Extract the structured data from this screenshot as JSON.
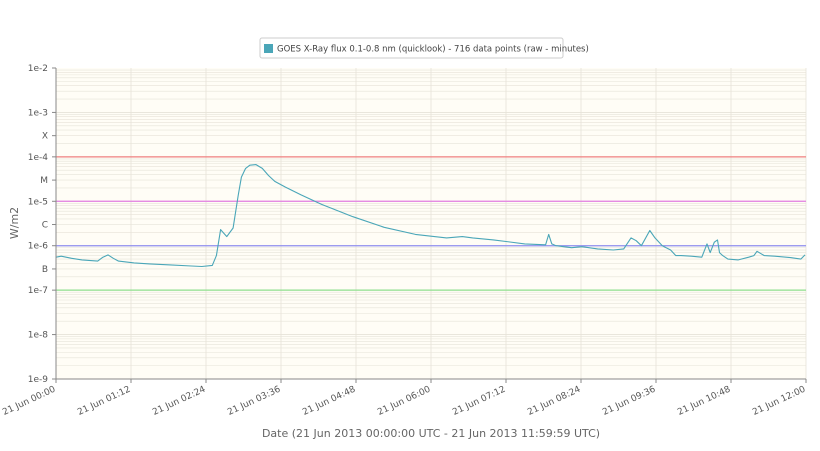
{
  "chart_data": {
    "type": "line",
    "title": "",
    "legend": {
      "label": "GOES X-Ray flux 0.1-0.8 nm (quicklook) - 716 data points (raw - minutes)",
      "color": "#4aa6b8",
      "placement": "top-center"
    },
    "xlabel": "Date (21 Jun 2013 00:00:00 UTC - 21 Jun 2013 11:59:59 UTC)",
    "ylabel": "W/m2",
    "y_scale": "log",
    "ylim": [
      1e-09,
      0.01
    ],
    "xlim": [
      "21 Jun 00:00",
      "21 Jun 12:00"
    ],
    "x_ticks": [
      "21 Jun 00:00",
      "21 Jun 01:12",
      "21 Jun 02:24",
      "21 Jun 03:36",
      "21 Jun 04:48",
      "21 Jun 06:00",
      "21 Jun 07:12",
      "21 Jun 08:24",
      "21 Jun 09:36",
      "21 Jun 10:48",
      "21 Jun 12:00"
    ],
    "y_ticks": [
      {
        "label": "1e-2",
        "value": 0.01
      },
      {
        "label": "1e-3",
        "value": 0.001
      },
      {
        "label": "X",
        "value": 0.0003
      },
      {
        "label": "1e-4",
        "value": 0.0001
      },
      {
        "label": "M",
        "value": 3e-05
      },
      {
        "label": "1e-5",
        "value": 1e-05
      },
      {
        "label": "C",
        "value": 3e-06
      },
      {
        "label": "1e-6",
        "value": 1e-06
      },
      {
        "label": "B",
        "value": 3e-07
      },
      {
        "label": "1e-7",
        "value": 1e-07
      },
      {
        "label": "1e-8",
        "value": 1e-08
      },
      {
        "label": "1e-9",
        "value": 1e-09
      }
    ],
    "thresholds": [
      {
        "class": "X",
        "value": 0.0001,
        "color": "#f08080"
      },
      {
        "class": "M",
        "value": 1e-05,
        "color": "#e27ee2"
      },
      {
        "class": "C",
        "value": 1e-06,
        "color": "#8f8ff0"
      },
      {
        "class": "B",
        "value": 1e-07,
        "color": "#8fe08f"
      }
    ],
    "grid": true,
    "colors": {
      "plot_background": "#fffdf6",
      "line": "#4aa6b8",
      "grid": "#e6e3d8"
    },
    "series": [
      {
        "x": [
          "21 Jun 00:00",
          "21 Jun 00:05",
          "21 Jun 00:15",
          "21 Jun 00:25",
          "21 Jun 00:40",
          "21 Jun 00:45",
          "21 Jun 00:50",
          "21 Jun 00:55",
          "21 Jun 01:00",
          "21 Jun 01:15",
          "21 Jun 01:30",
          "21 Jun 01:50",
          "21 Jun 02:10",
          "21 Jun 02:20",
          "21 Jun 02:30",
          "21 Jun 02:34",
          "21 Jun 02:38",
          "21 Jun 02:44",
          "21 Jun 02:50",
          "21 Jun 02:55",
          "21 Jun 02:58",
          "21 Jun 03:02",
          "21 Jun 03:06",
          "21 Jun 03:12",
          "21 Jun 03:18",
          "21 Jun 03:24",
          "21 Jun 03:30",
          "21 Jun 03:40",
          "21 Jun 03:55",
          "21 Jun 04:15",
          "21 Jun 04:45",
          "21 Jun 05:15",
          "21 Jun 05:45",
          "21 Jun 06:15",
          "21 Jun 06:30",
          "21 Jun 06:40",
          "21 Jun 07:00",
          "21 Jun 07:30",
          "21 Jun 07:50",
          "21 Jun 07:53",
          "21 Jun 07:56",
          "21 Jun 08:00",
          "21 Jun 08:15",
          "21 Jun 08:25",
          "21 Jun 08:40",
          "21 Jun 08:55",
          "21 Jun 09:05",
          "21 Jun 09:12",
          "21 Jun 09:17",
          "21 Jun 09:22",
          "21 Jun 09:30",
          "21 Jun 09:35",
          "21 Jun 09:42",
          "21 Jun 09:50",
          "21 Jun 09:55",
          "21 Jun 10:00",
          "21 Jun 10:10",
          "21 Jun 10:20",
          "21 Jun 10:25",
          "21 Jun 10:28",
          "21 Jun 10:32",
          "21 Jun 10:35",
          "21 Jun 10:37",
          "21 Jun 10:40",
          "21 Jun 10:45",
          "21 Jun 10:55",
          "21 Jun 11:05",
          "21 Jun 11:10",
          "21 Jun 11:13",
          "21 Jun 11:20",
          "21 Jun 11:30",
          "21 Jun 11:45",
          "21 Jun 11:55",
          "21 Jun 11:59"
        ],
        "y": [
          5.5e-07,
          5.8e-07,
          5.2e-07,
          4.8e-07,
          4.5e-07,
          5.5e-07,
          6.2e-07,
          5.2e-07,
          4.5e-07,
          4.1e-07,
          3.9e-07,
          3.7e-07,
          3.5e-07,
          3.4e-07,
          3.6e-07,
          6e-07,
          2.3e-06,
          1.6e-06,
          2.5e-06,
          1.4e-05,
          3.5e-05,
          5.5e-05,
          6.5e-05,
          6.7e-05,
          5.5e-05,
          3.8e-05,
          2.8e-05,
          2.1e-05,
          1.4e-05,
          8.5e-06,
          4.5e-06,
          2.6e-06,
          1.8e-06,
          1.5e-06,
          1.6e-06,
          1.5e-06,
          1.35e-06,
          1.1e-06,
          1.05e-06,
          1.8e-06,
          1.1e-06,
          1e-06,
          9e-07,
          9.5e-07,
          8.5e-07,
          8e-07,
          8.5e-07,
          1.5e-06,
          1.3e-06,
          1e-06,
          2.2e-06,
          1.5e-06,
          1e-06,
          8e-07,
          6e-07,
          6e-07,
          5.8e-07,
          5.5e-07,
          1.1e-06,
          7e-07,
          1.2e-06,
          1.35e-06,
          7e-07,
          6e-07,
          5e-07,
          4.8e-07,
          5.5e-07,
          6e-07,
          7.5e-07,
          6e-07,
          5.8e-07,
          5.4e-07,
          5e-07,
          6.2e-07
        ]
      }
    ]
  }
}
